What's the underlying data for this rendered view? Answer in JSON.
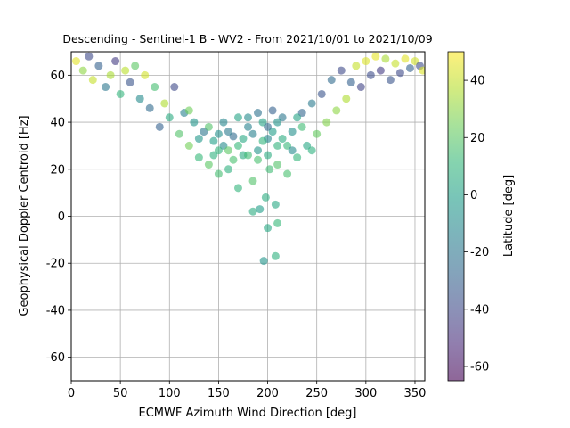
{
  "chart_data": {
    "type": "scatter",
    "title": "Descending - Sentinel-1 B - WV2 - From 2021/10/01 to 2021/10/09",
    "xlabel": "ECMWF Azimuth Wind Direction [deg]",
    "ylabel": "Geophysical Doppler Centroid [Hz]",
    "xlim": [
      0,
      360
    ],
    "ylim": [
      -70,
      70
    ],
    "xticks": [
      0,
      50,
      100,
      150,
      200,
      250,
      300,
      350
    ],
    "yticks": [
      -60,
      -40,
      -20,
      0,
      20,
      40,
      60
    ],
    "grid": true,
    "point_alpha": 0.6,
    "colorbar": {
      "label": "Latitude [deg]",
      "colormap": "viridis",
      "range": [
        -65,
        50
      ],
      "ticks": [
        -60,
        -40,
        -20,
        0,
        20,
        40
      ]
    },
    "points": [
      [
        5,
        66,
        45
      ],
      [
        12,
        62,
        30
      ],
      [
        18,
        68,
        -40
      ],
      [
        22,
        58,
        40
      ],
      [
        28,
        64,
        -30
      ],
      [
        35,
        55,
        -20
      ],
      [
        40,
        60,
        35
      ],
      [
        45,
        66,
        -45
      ],
      [
        50,
        52,
        10
      ],
      [
        55,
        62,
        38
      ],
      [
        60,
        57,
        -35
      ],
      [
        65,
        64,
        20
      ],
      [
        70,
        50,
        -10
      ],
      [
        75,
        60,
        42
      ],
      [
        80,
        46,
        -25
      ],
      [
        85,
        55,
        15
      ],
      [
        90,
        38,
        -30
      ],
      [
        95,
        48,
        36
      ],
      [
        100,
        42,
        5
      ],
      [
        105,
        55,
        -40
      ],
      [
        110,
        35,
        18
      ],
      [
        115,
        44,
        -15
      ],
      [
        120,
        30,
        25
      ],
      [
        125,
        40,
        -5
      ],
      [
        130,
        25,
        12
      ],
      [
        135,
        36,
        -20
      ],
      [
        140,
        22,
        20
      ],
      [
        145,
        32,
        0
      ],
      [
        150,
        18,
        15
      ],
      [
        155,
        30,
        -10
      ],
      [
        160,
        20,
        8
      ],
      [
        165,
        34,
        -25
      ],
      [
        170,
        12,
        10
      ],
      [
        175,
        26,
        5
      ],
      [
        180,
        38,
        -15
      ],
      [
        185,
        15,
        18
      ],
      [
        190,
        28,
        -5
      ],
      [
        195,
        40,
        2
      ],
      [
        198,
        8,
        6
      ],
      [
        200,
        33,
        -12
      ],
      [
        202,
        20,
        14
      ],
      [
        205,
        45,
        -30
      ],
      [
        208,
        5,
        4
      ],
      [
        210,
        30,
        9
      ],
      [
        215,
        42,
        -20
      ],
      [
        220,
        18,
        16
      ],
      [
        225,
        36,
        -8
      ],
      [
        230,
        25,
        11
      ],
      [
        235,
        44,
        -28
      ],
      [
        240,
        30,
        3
      ],
      [
        245,
        48,
        -18
      ],
      [
        250,
        35,
        22
      ],
      [
        255,
        52,
        -35
      ],
      [
        260,
        40,
        28
      ],
      [
        265,
        58,
        -25
      ],
      [
        270,
        45,
        30
      ],
      [
        275,
        62,
        -40
      ],
      [
        280,
        50,
        36
      ],
      [
        285,
        57,
        -30
      ],
      [
        290,
        64,
        40
      ],
      [
        295,
        55,
        -42
      ],
      [
        300,
        66,
        44
      ],
      [
        305,
        60,
        -38
      ],
      [
        310,
        68,
        46
      ],
      [
        315,
        62,
        -45
      ],
      [
        320,
        67,
        35
      ],
      [
        325,
        58,
        -35
      ],
      [
        330,
        65,
        40
      ],
      [
        335,
        61,
        -40
      ],
      [
        340,
        67,
        45
      ],
      [
        345,
        63,
        -30
      ],
      [
        350,
        66,
        42
      ],
      [
        355,
        64,
        -38
      ],
      [
        358,
        62,
        44
      ],
      [
        196,
        -19,
        -5
      ],
      [
        208,
        -17,
        8
      ],
      [
        200,
        -5,
        4
      ],
      [
        210,
        -3,
        12
      ],
      [
        185,
        2,
        6
      ],
      [
        192,
        3,
        -2
      ],
      [
        150,
        28,
        10
      ],
      [
        160,
        36,
        -18
      ],
      [
        170,
        42,
        2
      ],
      [
        180,
        26,
        14
      ],
      [
        190,
        44,
        -22
      ],
      [
        200,
        26,
        6
      ],
      [
        210,
        40,
        -6
      ],
      [
        220,
        30,
        12
      ],
      [
        175,
        33,
        4
      ],
      [
        165,
        24,
        16
      ],
      [
        155,
        40,
        -12
      ],
      [
        145,
        26,
        8
      ],
      [
        140,
        38,
        18
      ],
      [
        130,
        33,
        -4
      ],
      [
        120,
        45,
        24
      ],
      [
        185,
        35,
        -15
      ],
      [
        195,
        32,
        10
      ],
      [
        205,
        36,
        -2
      ],
      [
        215,
        33,
        6
      ],
      [
        225,
        28,
        -10
      ],
      [
        235,
        38,
        14
      ],
      [
        245,
        28,
        8
      ],
      [
        170,
        30,
        12
      ],
      [
        160,
        28,
        20
      ],
      [
        150,
        35,
        -8
      ],
      [
        190,
        24,
        16
      ],
      [
        200,
        38,
        -25
      ],
      [
        210,
        22,
        18
      ],
      [
        180,
        42,
        -10
      ],
      [
        230,
        42,
        2
      ]
    ]
  }
}
